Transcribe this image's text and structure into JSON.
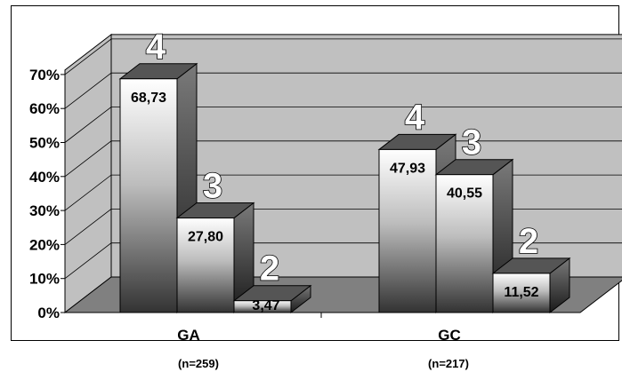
{
  "chart_data": {
    "type": "bar",
    "style": "3d-clustered",
    "categories": [
      "GA",
      "GC"
    ],
    "category_notes": [
      "(n=259)",
      "(n=217)"
    ],
    "series": [
      {
        "name": "4",
        "values": [
          68.73,
          47.93
        ]
      },
      {
        "name": "3",
        "values": [
          27.8,
          40.55
        ]
      },
      {
        "name": "2",
        "values": [
          3.47,
          11.52
        ]
      }
    ],
    "data_labels": [
      [
        "68,73",
        "47,93"
      ],
      [
        "27,80",
        "40,55"
      ],
      [
        "3,47",
        "11,52"
      ]
    ],
    "yticks": [
      "0%",
      "10%",
      "20%",
      "30%",
      "40%",
      "50%",
      "60%",
      "70%"
    ],
    "ylim": [
      0,
      70
    ],
    "grid": true,
    "colors": {
      "wall": "#c0c0c0",
      "floor": "#808080",
      "bar_dark": "#333333",
      "bar_light": "#ffffff"
    }
  }
}
